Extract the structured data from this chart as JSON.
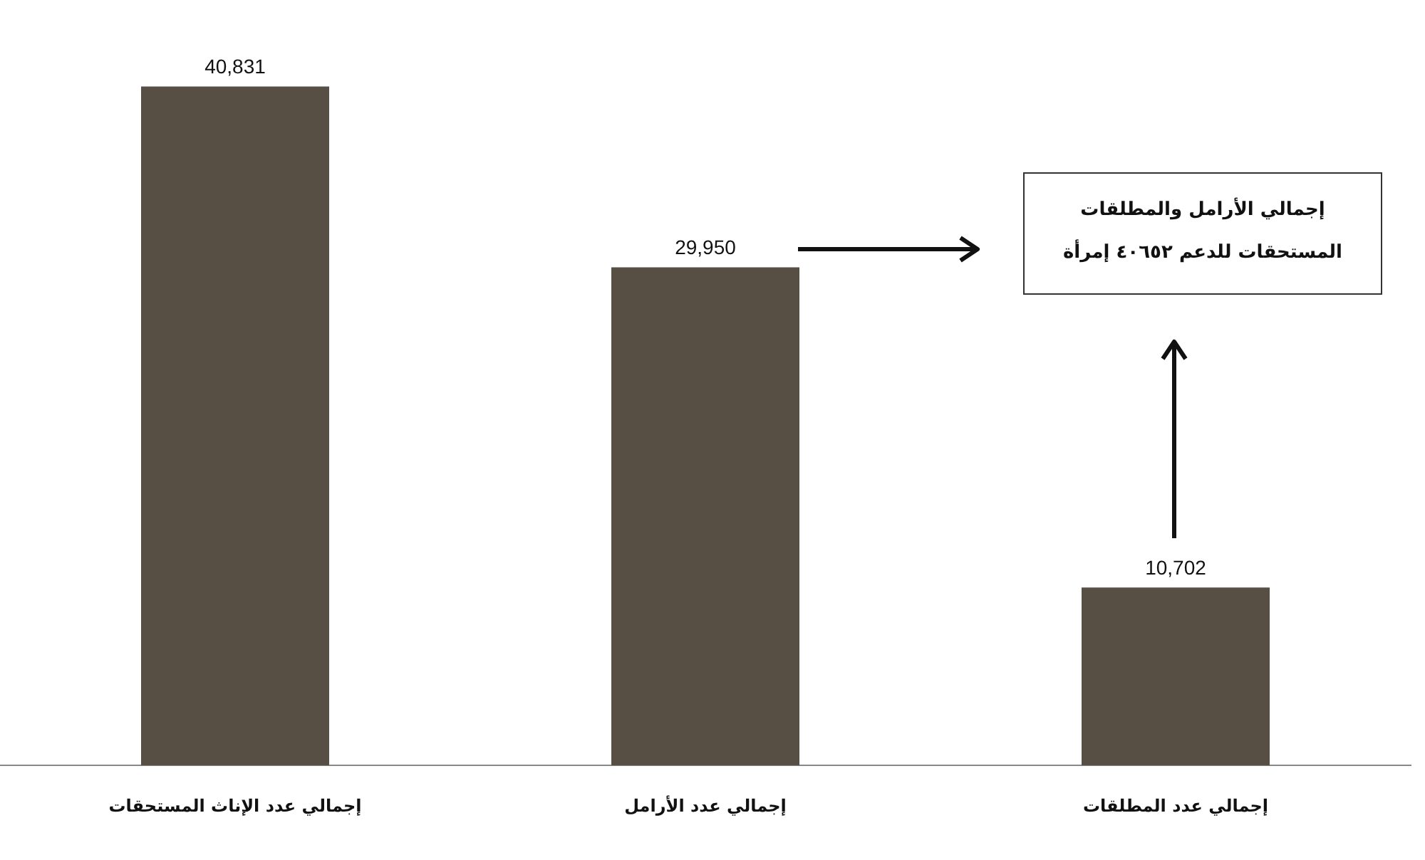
{
  "chart_data": {
    "type": "bar",
    "categories": [
      "إجمالي عدد الإناث المستحقات",
      "إجمالي عدد الأرامل",
      "إجمالي عدد المطلقات"
    ],
    "values": [
      40831,
      29950,
      10702
    ],
    "color": "#574e44",
    "value_labels": [
      "40,831",
      "29,950",
      "10,702"
    ],
    "grid": false,
    "legend": false,
    "annotations": [
      "إجمالي الأرامل والمطلقات\nالمستحقات للدعم ٤٠٦٥٢ إمرأة"
    ]
  }
}
